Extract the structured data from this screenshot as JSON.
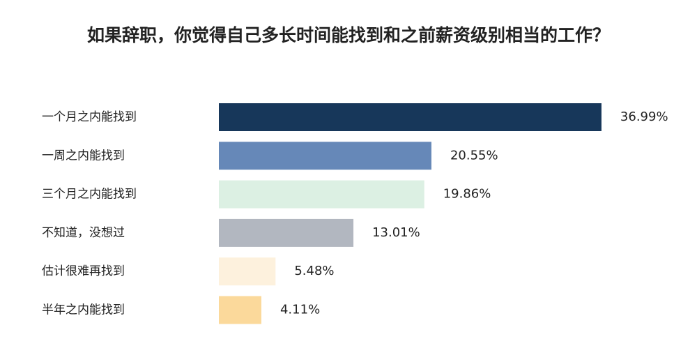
{
  "chart_data": {
    "type": "bar",
    "orientation": "horizontal",
    "title": "如果辞职，你觉得自己多长时间能找到和之前薪资级别相当的工作？",
    "categories": [
      "一个月之内能找到",
      "一周之内能找到",
      "三个月之内能找到",
      "不知道，没想过",
      "估计很难再找到",
      "半年之内能找到"
    ],
    "values": [
      36.99,
      20.55,
      19.86,
      13.01,
      5.48,
      4.11
    ],
    "value_labels": [
      "36.99%",
      "20.55%",
      "19.86%",
      "13.01%",
      "5.48%",
      "4.11%"
    ],
    "colors": [
      "#17375a",
      "#6688b8",
      "#dcf0e3",
      "#b2b7c0",
      "#fdf1dd",
      "#fbd99b"
    ]
  }
}
